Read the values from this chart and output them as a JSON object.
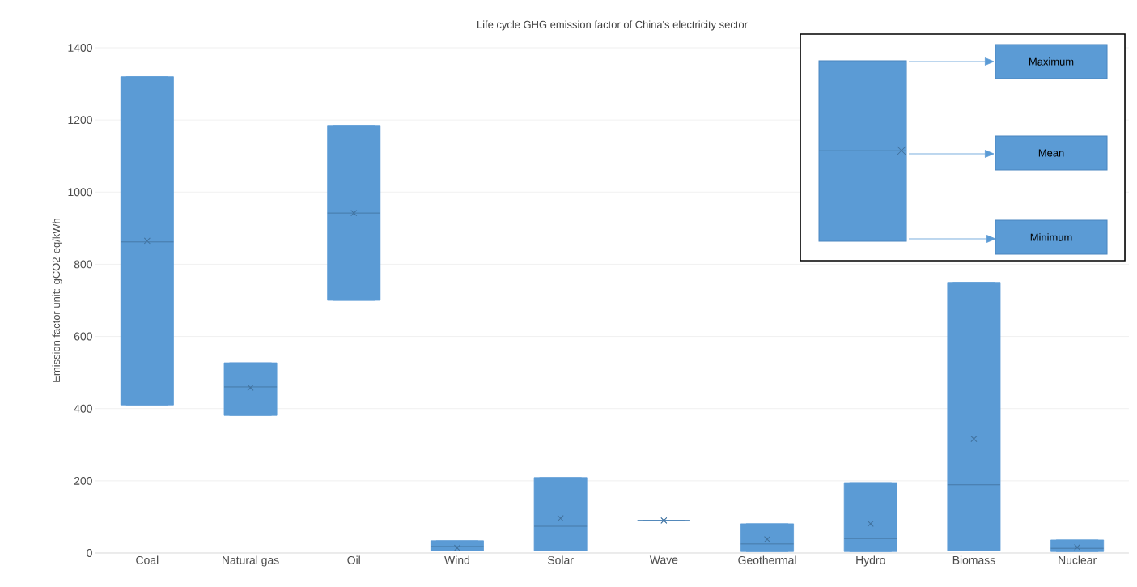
{
  "chart_data": {
    "type": "box",
    "title": "Life cycle GHG emission factor of China's electricity sector",
    "ylabel": "Emission factor unit: gCO2-eq/kWh",
    "categories": [
      "Coal",
      "Natural gas",
      "Oil",
      "Wind",
      "Solar",
      "Wave",
      "Geothermal",
      "Hydro",
      "Biomass",
      "Nuclear"
    ],
    "color": "#5b9bd5",
    "boxes": [
      {
        "low": 410,
        "q1": 410,
        "median": 862,
        "q3": 1320,
        "high": 1320,
        "mean": 865
      },
      {
        "low": 381,
        "q1": 381,
        "median": 460,
        "q3": 527,
        "high": 527,
        "mean": 458
      },
      {
        "low": 700,
        "q1": 700,
        "median": 942,
        "q3": 1183,
        "high": 1183,
        "mean": 942
      },
      {
        "low": 7,
        "q1": 7,
        "median": 18,
        "q3": 34,
        "high": 34,
        "mean": 14
      },
      {
        "low": 7,
        "q1": 7,
        "median": 74,
        "q3": 209,
        "high": 209,
        "mean": 96
      },
      {
        "low": 90,
        "q1": 90,
        "median": 90,
        "q3": 90,
        "high": 90,
        "mean": 90
      },
      {
        "low": 4,
        "q1": 4,
        "median": 25,
        "q3": 81,
        "high": 81,
        "mean": 38
      },
      {
        "low": 4,
        "q1": 4,
        "median": 40,
        "q3": 195,
        "high": 195,
        "mean": 81
      },
      {
        "low": 7,
        "q1": 7,
        "median": 189,
        "q3": 750,
        "high": 750,
        "mean": 316
      },
      {
        "low": 4,
        "q1": 4,
        "median": 13,
        "q3": 36,
        "high": 36,
        "mean": 16
      }
    ],
    "ylim": [
      0,
      1400
    ],
    "yticks": [
      0,
      200,
      400,
      600,
      800,
      1000,
      1200,
      1400
    ],
    "grid": "y",
    "marker": "cross",
    "annotations": [
      "Maximum",
      "Mean",
      "Minimum"
    ]
  }
}
